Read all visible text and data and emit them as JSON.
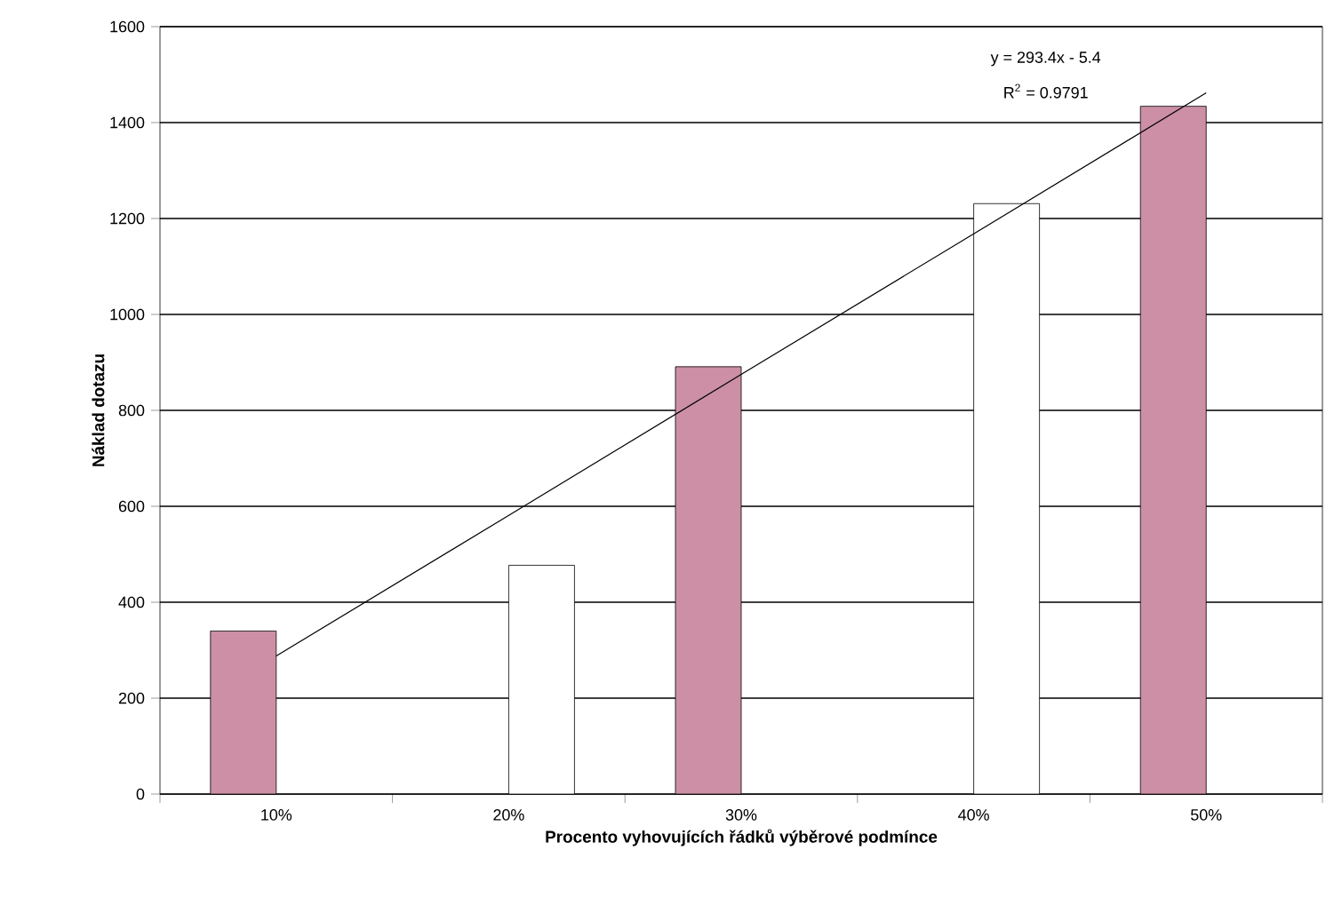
{
  "chart_data": {
    "type": "bar",
    "xlabel": "Procento vyhovujících řádků výběrové podmínce",
    "ylabel": "Náklad dotazu",
    "categories": [
      "10%",
      "20%",
      "30%",
      "40%",
      "50%"
    ],
    "series": [
      {
        "color": "#cc8fa6",
        "values": [
          340,
          null,
          891,
          null,
          1434
        ]
      },
      {
        "color": "#ffffff",
        "values": [
          null,
          477,
          null,
          1231,
          null
        ]
      },
      {
        "type": "line",
        "color": "#000000",
        "values": [
          288,
          581,
          875,
          1168,
          1462
        ]
      }
    ],
    "ylim": [
      0,
      1600
    ],
    "yticks": [
      0,
      200,
      400,
      600,
      800,
      1000,
      1200,
      1400,
      1600
    ],
    "grid": "y",
    "annotations": [
      "y = 293.4x - 5.4",
      "R$^{2}$ = 0.9791"
    ]
  }
}
